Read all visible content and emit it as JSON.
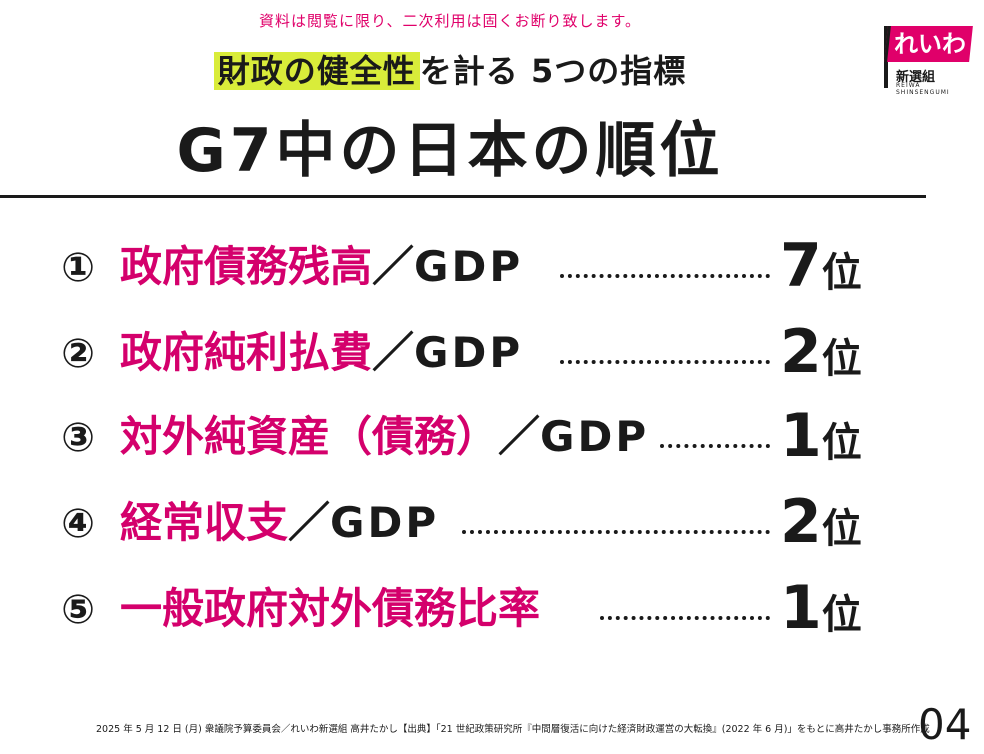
{
  "notice": "資料は閲覧に限り、二次利用は固くお断り致します。",
  "subtitle": {
    "highlight": "財政の健全性",
    "rest": "を計る 5つの指標"
  },
  "title": "G7中の日本の順位",
  "logo": {
    "mark": "れいわ",
    "name": "新選組",
    "roman": "REIWA SHINSENGUMI"
  },
  "indicators": [
    {
      "num": "①",
      "name": "政府債務残高",
      "slash": "／",
      "gdp": "GDP",
      "rank": "7",
      "unit": "位"
    },
    {
      "num": "②",
      "name": "政府純利払費",
      "slash": "／",
      "gdp": "GDP",
      "rank": "2",
      "unit": "位"
    },
    {
      "num": "③",
      "name": "対外純資産（債務）",
      "slash": "／",
      "gdp": "GDP",
      "rank": "1",
      "unit": "位"
    },
    {
      "num": "④",
      "name": "経常収支",
      "slash": "／",
      "gdp": "GDP",
      "rank": "2",
      "unit": "位"
    },
    {
      "num": "⑤",
      "name": "一般政府対外債務比率",
      "slash": "",
      "gdp": "",
      "rank": "1",
      "unit": "位"
    }
  ],
  "footer": "2025 年 5 月 12 日 (月) 衆議院予算委員会／れいわ新選組 高井たかし【出典】「21 世紀政策研究所『中間層復活に向けた経済財政運営の大転換』(2022 年 6 月)」をもとに高井たかし事務所作成",
  "page_number": "04",
  "colors": {
    "accent": "#d4006c",
    "highlight": "#d9ec3a",
    "text": "#1a1a1a"
  }
}
